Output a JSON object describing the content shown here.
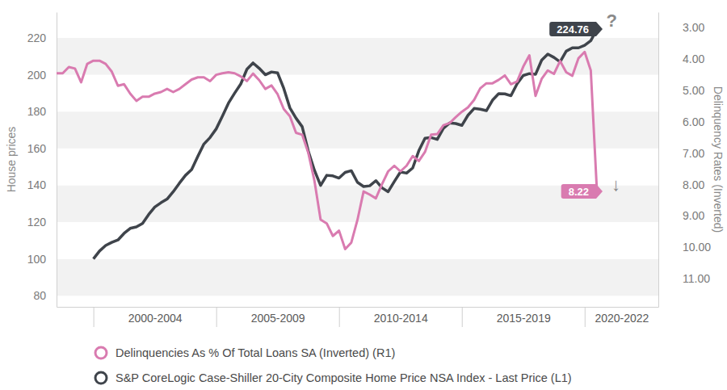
{
  "chart_data": {
    "type": "line",
    "y_label": "House prices",
    "y2_label": "Delinquency Rates (Inverted)",
    "x": [
      1998.5,
      1998.75,
      1999,
      1999.25,
      1999.5,
      1999.75,
      2000,
      2000.25,
      2000.5,
      2000.75,
      2001,
      2001.25,
      2001.5,
      2001.75,
      2002,
      2002.25,
      2002.5,
      2002.75,
      2003,
      2003.25,
      2003.5,
      2003.75,
      2004,
      2004.25,
      2004.5,
      2004.75,
      2005,
      2005.25,
      2005.5,
      2005.75,
      2006,
      2006.25,
      2006.5,
      2006.75,
      2007,
      2007.25,
      2007.5,
      2007.75,
      2008,
      2008.25,
      2008.5,
      2008.75,
      2009,
      2009.25,
      2009.5,
      2009.75,
      2010,
      2010.25,
      2010.5,
      2010.75,
      2011,
      2011.25,
      2011.5,
      2011.75,
      2012,
      2012.25,
      2012.5,
      2012.75,
      2013,
      2013.25,
      2013.5,
      2013.75,
      2014,
      2014.25,
      2014.5,
      2014.75,
      2015,
      2015.25,
      2015.5,
      2015.75,
      2016,
      2016.25,
      2016.5,
      2016.75,
      2017,
      2017.25,
      2017.5,
      2017.75,
      2018,
      2018.25,
      2018.5,
      2018.75,
      2019,
      2019.25,
      2019.5,
      2019.75,
      2020,
      2020.25,
      2020.5
    ],
    "series": [
      {
        "name": "Delinquencies As % Of Total Loans SA (Inverted) (R1)",
        "color": "#d97bb0",
        "axis": "y2",
        "values": [
          4.45,
          4.45,
          4.25,
          4.3,
          4.74,
          4.15,
          4.05,
          4.05,
          4.15,
          4.4,
          4.85,
          4.8,
          5.1,
          5.33,
          5.2,
          5.2,
          5.1,
          5.05,
          4.95,
          5.05,
          4.95,
          4.8,
          4.65,
          4.58,
          4.58,
          4.7,
          4.5,
          4.45,
          4.42,
          4.45,
          4.55,
          4.7,
          4.46,
          4.67,
          4.95,
          4.84,
          5.12,
          5.59,
          5.82,
          6.35,
          6.41,
          6.99,
          7.88,
          9.12,
          9.24,
          9.64,
          9.47,
          10.06,
          9.85,
          9.13,
          8.22,
          8.32,
          8.44,
          7.99,
          7.58,
          7.4,
          7.58,
          7.4,
          7.09,
          7.25,
          6.96,
          6.41,
          6.39,
          6.11,
          6.04,
          5.85,
          5.68,
          5.54,
          5.3,
          4.93,
          4.77,
          4.77,
          4.66,
          4.52,
          4.8,
          4.71,
          4.24,
          3.88,
          5.17,
          4.63,
          4.36,
          4.47,
          4.06,
          4.42,
          4.53,
          3.97,
          3.77,
          4.36,
          8.22
        ]
      },
      {
        "name": "S&P CoreLogic Case-Shiller 20-City Composite Home Price NSA Index - Last Price (L1)",
        "color": "#3f444b",
        "axis": "y",
        "values": [
          null,
          null,
          null,
          null,
          null,
          null,
          100,
          104.3,
          107.3,
          109,
          110.3,
          113.9,
          116.6,
          117.4,
          119.3,
          124.1,
          128.2,
          130.5,
          132.5,
          136.5,
          141.1,
          145.4,
          148.5,
          155.6,
          162.4,
          165.9,
          170.6,
          177.5,
          184.6,
          190,
          195,
          203,
          206.4,
          203.5,
          200,
          201.5,
          201,
          192.6,
          182,
          176.4,
          171.8,
          158.5,
          148.1,
          139.9,
          145.4,
          145.1,
          143.9,
          147,
          147.9,
          141.6,
          139.3,
          139.7,
          142.5,
          138.6,
          136.5,
          142,
          147.2,
          146.6,
          149.4,
          158.8,
          165.5,
          165.9,
          164.9,
          170.9,
          173.8,
          173.5,
          172.5,
          178,
          181.7,
          181.3,
          180.5,
          186.2,
          189.7,
          189.6,
          188.6,
          195.1,
          199.6,
          200.6,
          200.2,
          207.9,
          211.2,
          209.4,
          207,
          212.8,
          214.6,
          214.6,
          216,
          218.5,
          224.76
        ]
      }
    ],
    "xlim": [
      1998.5,
      2023
    ],
    "xticks": [
      {
        "value": 2000,
        "label": "2000-2004"
      },
      {
        "value": 2005,
        "label": "2005-2009"
      },
      {
        "value": 2010,
        "label": "2010-2014"
      },
      {
        "value": 2015,
        "label": "2015-2019"
      },
      {
        "value": 2020,
        "label": "2020-2022"
      }
    ],
    "ylim": [
      74,
      234
    ],
    "yticks": [
      80,
      100,
      120,
      140,
      160,
      180,
      200,
      220
    ],
    "y2lim": [
      11.9,
      2.5
    ],
    "y2ticks": [
      {
        "value": 3,
        "label": "3.00"
      },
      {
        "value": 4,
        "label": "4.00"
      },
      {
        "value": 5,
        "label": "5.00"
      },
      {
        "value": 6,
        "label": "6.00"
      },
      {
        "value": 7,
        "label": "7.00"
      },
      {
        "value": 8,
        "label": "8.00"
      },
      {
        "value": 9,
        "label": "9.00"
      },
      {
        "value": 10,
        "label": "10.00"
      },
      {
        "value": 11,
        "label": "11.00"
      }
    ],
    "annotations": [
      {
        "text": "224.76",
        "x": 2020.5,
        "y": 224.76,
        "axis": "y",
        "color": "#3f444b"
      },
      {
        "text": "?",
        "x": 2021.1,
        "y": 229.2,
        "axis": "y"
      },
      {
        "text": "8.22",
        "x": 2020.5,
        "y": 8.22,
        "axis": "y2",
        "color": "#d97bb0"
      },
      {
        "text": "↓",
        "x": 2021.27,
        "y": 7.99,
        "axis": "y2"
      }
    ],
    "grid": true,
    "legend": "bottom"
  }
}
